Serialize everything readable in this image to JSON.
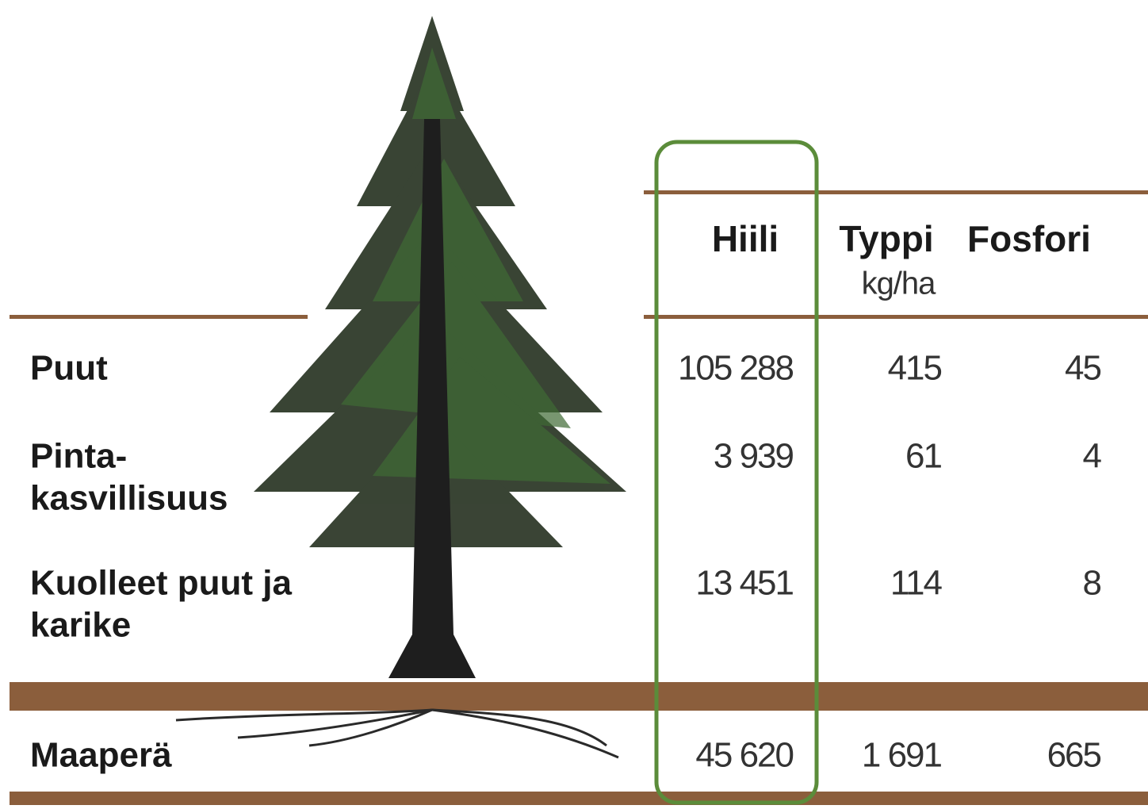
{
  "table": {
    "columns": [
      "Hiili",
      "Typpi",
      "Fosfori"
    ],
    "unit": "kg/ha",
    "rows": [
      {
        "label": [
          "Puut"
        ],
        "cells": [
          "105 288",
          "415",
          "45"
        ]
      },
      {
        "label": [
          "Pinta-",
          "kasvillisuus"
        ],
        "cells": [
          "3 939",
          "61",
          "4"
        ]
      },
      {
        "label": [
          "Kuolleet puut ja",
          "karike"
        ],
        "cells": [
          "13 451",
          "114",
          "8"
        ]
      },
      {
        "label": [
          "Maaperä"
        ],
        "cells": [
          "45 620",
          "1 691",
          "665"
        ]
      }
    ]
  }
}
